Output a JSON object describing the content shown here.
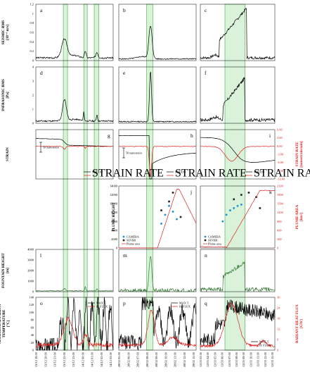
{
  "row_labels": {
    "seismic": [
      "SEISMIC RMS",
      "[10⁻⁶ m/s]"
    ],
    "infrasonic": [
      "INFRASONIC RMS",
      "[Pa]"
    ],
    "strain": [
      "STRAIN"
    ],
    "fountain": [
      "FOUNTAIN HEIGHT",
      "[m]"
    ],
    "temperature": [
      "MAXIMUM APPARENT",
      "TEMPERATURE",
      "[°C]"
    ]
  },
  "right_labels": {
    "strain_rate": [
      "STRAIN RATE",
      "[nanostrain/min]"
    ],
    "plume_area": [
      "PLUME AREA",
      "[km²]"
    ],
    "radiant_heat_flux": [
      "RADIANT HEAT FLUX",
      "[GW]"
    ]
  },
  "plume_height_label": "PLUME HEIGHT",
  "panel_letters": [
    "a",
    "b",
    "c",
    "d",
    "e",
    "f",
    "g",
    "h",
    "i",
    "j",
    "k",
    "l",
    "m",
    "n",
    "o",
    "p",
    "q"
  ],
  "scale_bar": "50 nanostrain",
  "legends": {
    "strain": [
      "STRAIN",
      "STRAIN RATE"
    ],
    "plume": [
      "CAMERA",
      "SEVIRI",
      "Plume area"
    ],
    "temp": [
      "MAX T.",
      "H. FLUX"
    ]
  },
  "colors": {
    "highlight": "#b9e8b9",
    "rate": "#e0201e",
    "fountain": "#3d7a3d"
  },
  "axis_ticks": {
    "seismic": [
      "1.2",
      "1",
      "0.8",
      "0.6",
      "0.4",
      "0.2",
      "0"
    ],
    "infrasonic": [
      "4",
      "3",
      "2",
      "1",
      "0"
    ],
    "strain_rate": [
      "6.00",
      "3.00",
      "0.00",
      "-3.00",
      "-6.00",
      "-9.00",
      "-12.00"
    ],
    "plume_height": [
      "14000",
      "12000",
      "10000",
      "8000",
      "6000",
      "4000",
      "2000",
      "0"
    ],
    "plume_area": [
      "2100",
      "1800",
      "1500",
      "1200",
      "900",
      "600",
      "300",
      "0"
    ],
    "fountain": [
      "4000",
      "3000",
      "2000",
      "1000",
      "0"
    ],
    "temperature": [
      "140",
      "120",
      "100",
      "80",
      "60",
      "40",
      "20",
      "0"
    ],
    "heat_flux": [
      "30",
      "24",
      "18",
      "12",
      "6",
      "0"
    ]
  },
  "time_labels": {
    "col1": [
      "13/12 19:00",
      "13/12 20:00",
      "13/12 21:00",
      "13/12 22:00",
      "13/12 23:00",
      "14/12 00:00",
      "14/12 01:00",
      "14/12 02:00",
      "14/12 03:00"
    ],
    "col2": [
      "28/02 05:00",
      "28/02 06:00",
      "28/02 07:00",
      "28/02 08:00",
      "28/02 09:00",
      "28/02 10:00",
      "28/02 11:00",
      "28/02 12:00",
      "28/02 13:00"
    ],
    "col3": [
      "12/03 03:00",
      "12/03 04:00",
      "12/03 05:00",
      "12/03 06:00",
      "12/03 07:00",
      "12/03 08:00",
      "12/03 09:00",
      "12/03 10:00",
      "12/03 11:00",
      "12/03 12:00",
      "12/03 13:00"
    ]
  },
  "chart_data": {
    "type": "line",
    "title": "",
    "columns": [
      "13-14/12",
      "28/02",
      "12/03"
    ],
    "seismic_rms_peak": [
      0.48,
      0.72,
      1.08
    ],
    "infrasonic_rms_peak": [
      1.8,
      3.7,
      3.0
    ],
    "plume_height_samples": {
      "col2": {
        "camera": [
          [
            0.55,
            5500
          ],
          [
            0.6,
            7500
          ],
          [
            0.65,
            9500
          ],
          [
            0.7,
            8200
          ],
          [
            0.75,
            6500
          ]
        ],
        "seviri": [
          [
            0.55,
            8500
          ],
          [
            0.65,
            10500
          ],
          [
            0.7,
            12500
          ],
          [
            0.8,
            7000
          ]
        ]
      },
      "col3": {
        "camera": [
          [
            0.3,
            6000
          ],
          [
            0.35,
            7500
          ],
          [
            0.4,
            8500
          ],
          [
            0.45,
            9000
          ],
          [
            0.5,
            9500
          ],
          [
            0.55,
            9800
          ]
        ],
        "seviri": [
          [
            0.45,
            11000
          ],
          [
            0.55,
            12000
          ],
          [
            0.65,
            12500
          ],
          [
            0.75,
            11500
          ],
          [
            0.8,
            9000
          ]
        ]
      }
    },
    "fountain_height_peak": [
      600,
      3800,
      2600
    ],
    "max_temperature_peak": [
      130,
      135,
      135
    ],
    "radiant_heat_flux_peak": [
      28,
      27,
      30
    ]
  }
}
